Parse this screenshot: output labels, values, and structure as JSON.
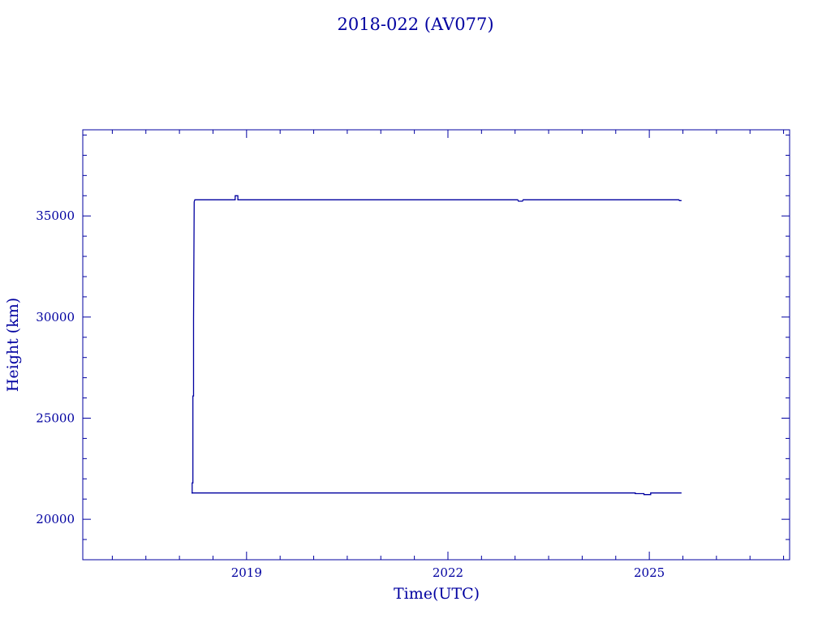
{
  "chart_data": {
    "type": "line",
    "title": "2018-022 (AV077)",
    "xlabel": "Time(UTC)",
    "ylabel": "Height (km)",
    "xlim": [
      2016.56,
      2027.09
    ],
    "ylim": [
      18000,
      39260
    ],
    "x_ticks": [
      2019,
      2022,
      2025
    ],
    "y_ticks": [
      20000,
      25000,
      30000,
      35000
    ],
    "x_minor_step": 0.5,
    "y_minor_step": 1000,
    "grid": false,
    "color": "#0000a0",
    "series": [
      {
        "x": [
          2018.18,
          2018.19,
          2018.19,
          2018.2,
          2018.2,
          2018.21,
          2018.21,
          2018.22,
          2018.23,
          2018.83,
          2018.83,
          2018.87,
          2018.87,
          2023.04,
          2023.05,
          2023.11,
          2023.12,
          2025.44,
          2025.45,
          2025.48
        ],
        "y": [
          21300,
          21300,
          21800,
          21800,
          26100,
          26100,
          29900,
          35700,
          35800,
          35800,
          36000,
          36000,
          35800,
          35800,
          35730,
          35730,
          35800,
          35800,
          35760,
          35760
        ]
      },
      {
        "x": [
          2018.18,
          2024.79,
          2024.79,
          2024.92,
          2024.92,
          2025.02,
          2025.02,
          2025.48
        ],
        "y": [
          21300,
          21300,
          21270,
          21270,
          21220,
          21220,
          21300,
          21300
        ]
      }
    ]
  }
}
